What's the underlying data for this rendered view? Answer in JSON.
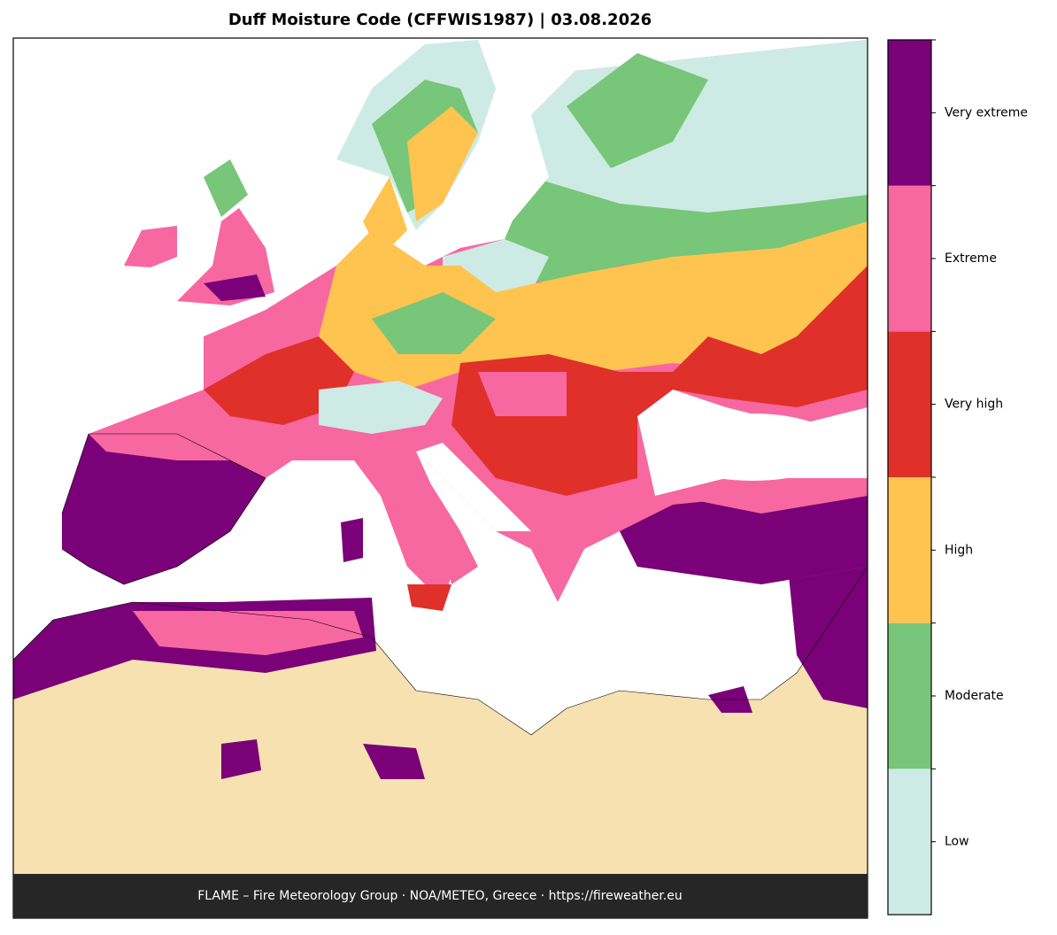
{
  "title": "Duff Moisture Code (CFFWIS1987)  |  03.08.2026",
  "footer": "FLAME – Fire Meteorology Group · NOA/METEO, Greece · https://fireweather.eu",
  "legend": {
    "classes": [
      {
        "label": "Low",
        "color": "#cdebe4"
      },
      {
        "label": "Moderate",
        "color": "#78c679"
      },
      {
        "label": "High",
        "color": "#fec44f"
      },
      {
        "label": "Very high",
        "color": "#e0302a"
      },
      {
        "label": "Extreme",
        "color": "#f768a1"
      },
      {
        "label": "Very extreme",
        "color": "#7a0177"
      }
    ]
  }
}
